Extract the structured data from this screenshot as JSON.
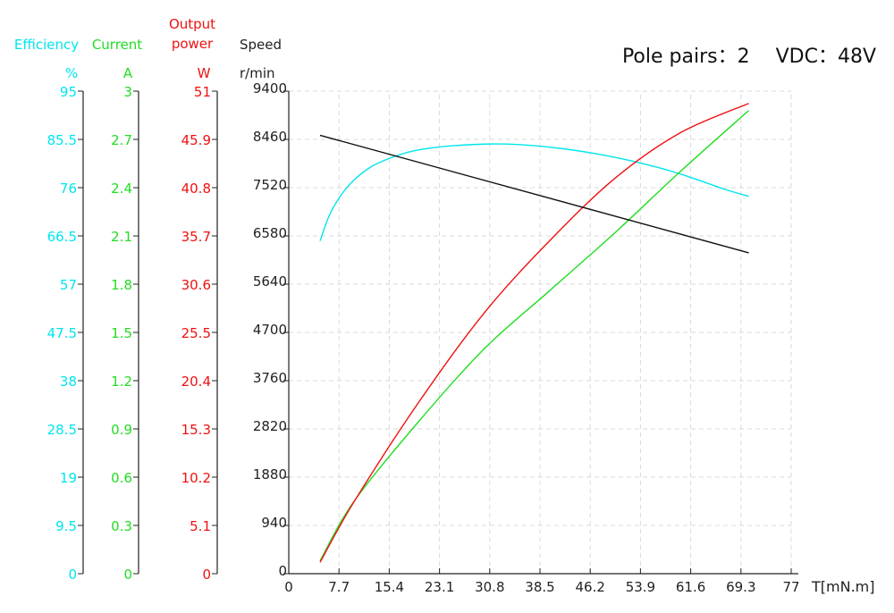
{
  "header": {
    "pole_pairs": "Pole pairs：2",
    "vdc": "VDC：48V"
  },
  "colors": {
    "efficiency": "#00e5ee",
    "current": "#22dd22",
    "power": "#ee1111",
    "speed": "#111111",
    "grid": "#d8d8d8",
    "axis": "#222222"
  },
  "chart_data": {
    "type": "line",
    "grid": true,
    "x_axis": {
      "label": "T[mN.m]",
      "ticks": [
        "0",
        "7.7",
        "15.4",
        "23.1",
        "30.8",
        "38.5",
        "46.2",
        "53.9",
        "61.6",
        "69.3",
        "77"
      ],
      "range": [
        0,
        77
      ]
    },
    "y_axes": [
      {
        "key": "efficiency",
        "title": "Efficiency",
        "unit": "%",
        "range": [
          0,
          95
        ],
        "ticks": [
          "0",
          "9.5",
          "19",
          "28.5",
          "38",
          "47.5",
          "57",
          "66.5",
          "76",
          "85.5",
          "95"
        ]
      },
      {
        "key": "current",
        "title": "Current",
        "unit": "A",
        "range": [
          0,
          3
        ],
        "ticks": [
          "0",
          "0.3",
          "0.6",
          "0.9",
          "1.2",
          "1.5",
          "1.8",
          "2.1",
          "2.4",
          "2.7",
          "3"
        ]
      },
      {
        "key": "power",
        "title": "Output power",
        "unit": "W",
        "range": [
          0,
          51
        ],
        "ticks": [
          "0",
          "5.1",
          "10.2",
          "15.3",
          "20.4",
          "25.5",
          "30.6",
          "35.7",
          "40.8",
          "45.9",
          "51"
        ]
      },
      {
        "key": "speed",
        "title": "Speed",
        "unit": "r/min",
        "range": [
          0,
          9400
        ],
        "ticks": [
          "0",
          "940",
          "1880",
          "2820",
          "3760",
          "4700",
          "5640",
          "6580",
          "7520",
          "8460",
          "9400"
        ]
      }
    ],
    "series": [
      {
        "axis": "efficiency",
        "x": [
          4.8,
          6.2,
          8,
          10,
          12.5,
          15.5,
          19,
          23,
          27,
          31,
          35,
          39,
          43,
          47,
          51,
          55,
          59,
          63,
          67,
          70.5
        ],
        "values": [
          65.5,
          70.5,
          74.5,
          77.5,
          80,
          81.8,
          83.2,
          84,
          84.4,
          84.6,
          84.5,
          84.1,
          83.5,
          82.7,
          81.7,
          80.5,
          79.1,
          77.4,
          75.6,
          74.3
        ]
      },
      {
        "axis": "current",
        "x": [
          4.8,
          10,
          20,
          30,
          40,
          50,
          60,
          70.5
        ],
        "values": [
          0.08,
          0.45,
          0.95,
          1.4,
          1.76,
          2.12,
          2.5,
          2.88
        ]
      },
      {
        "axis": "power",
        "x": [
          4.8,
          10,
          20,
          30,
          40,
          50,
          60,
          70.5
        ],
        "values": [
          1.2,
          7.6,
          18.2,
          27.6,
          35.2,
          41.8,
          46.6,
          49.7
        ]
      },
      {
        "axis": "speed",
        "x": [
          4.8,
          70.5
        ],
        "values": [
          8540,
          6250
        ]
      }
    ]
  }
}
